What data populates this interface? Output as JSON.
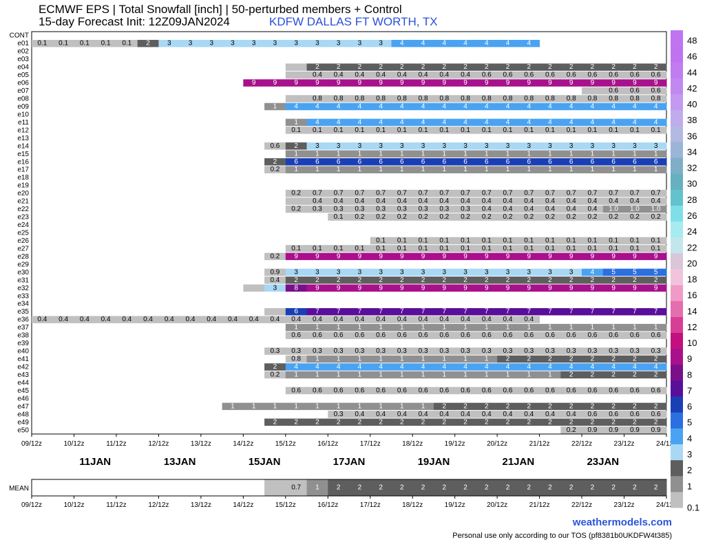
{
  "header": {
    "title": "ECMWF EPS | Total Snowfall [inch] | 50-perturbed members + Control",
    "init": "15-day Forecast Init: 12Z09JAN2024",
    "site": "KDFW DALLAS FT WORTH, TX"
  },
  "footer": {
    "brand": "weathermodels.com",
    "tos": "Personal use only according to our TOS (pf8381b0UKDFW4t385)"
  },
  "chart_data": {
    "type": "heatmap",
    "title": "ECMWF EPS | Total Snowfall [inch] | 50-perturbed members + Control",
    "units": "inch",
    "x": {
      "tick_labels": [
        "09/12z",
        "10/12z",
        "11/12z",
        "12/12z",
        "13/12z",
        "14/12z",
        "15/12z",
        "16/12z",
        "17/12z",
        "18/12z",
        "19/12z",
        "20/12z",
        "21/12z",
        "22/12z",
        "23/12z",
        "24/12z"
      ],
      "day_labels": [
        "11JAN",
        "13JAN",
        "15JAN",
        "17JAN",
        "19JAN",
        "21JAN",
        "23JAN"
      ],
      "columns_from": "15/12z",
      "column_step_hours": 12
    },
    "members": [
      "CONT",
      "e01",
      "e02",
      "e03",
      "e04",
      "e05",
      "e06",
      "e07",
      "e08",
      "e09",
      "e10",
      "e11",
      "e12",
      "e13",
      "e14",
      "e15",
      "e16",
      "e17",
      "e18",
      "e19",
      "e20",
      "e21",
      "e22",
      "e23",
      "e24",
      "e25",
      "e26",
      "e27",
      "e28",
      "e29",
      "e30",
      "e31",
      "e32",
      "e33",
      "e34",
      "e35",
      "e36",
      "e37",
      "e38",
      "e39",
      "e40",
      "e41",
      "e42",
      "e43",
      "e44",
      "e45",
      "e46",
      "e47",
      "e48",
      "e49",
      "e50"
    ],
    "rows": {
      "CONT": {
        "start": 16.5,
        "values": [
          "",
          "0.4"
        ]
      },
      "e01": {
        "start": 0,
        "values": [
          "0.1",
          "0.1",
          "0.1",
          "0.1",
          "0.1",
          "2",
          "3",
          "3",
          "3",
          "3",
          "3",
          "3",
          "3",
          "3",
          "3",
          "3",
          "3",
          "4",
          "4",
          "4",
          "4",
          "4",
          "4",
          "4"
        ]
      },
      "e02": {
        "start": 0,
        "values": []
      },
      "e03": {
        "start": 0,
        "values": []
      },
      "e04": {
        "start": 6,
        "values": [
          "",
          "2",
          "2",
          "2",
          "2",
          "2",
          "2",
          "2",
          "2",
          "2",
          "2",
          "2",
          "2",
          "2",
          "2",
          "2",
          "2",
          "2",
          "2"
        ]
      },
      "e05": {
        "start": 6,
        "values": [
          "",
          "0.4",
          "0.4",
          "0.4",
          "0.4",
          "0.4",
          "0.4",
          "0.4",
          "0.4",
          "0.6",
          "0.6",
          "0.6",
          "0.6",
          "0.6",
          "0.6",
          "0.6",
          "0.6",
          "0.6",
          "0.6"
        ]
      },
      "e06": {
        "start": 5,
        "values": [
          "9",
          "9",
          "9",
          "9",
          "9",
          "9",
          "9",
          "9",
          "9",
          "9",
          "9",
          "9",
          "9",
          "9",
          "9",
          "9",
          "9",
          "9",
          "9",
          "9"
        ]
      },
      "e07": {
        "start": 13,
        "values": [
          "",
          "0.6",
          "0.6",
          "0.6",
          "0.6",
          "0.6",
          "0.6",
          "0.6",
          "0.6",
          "0.6",
          "0.6",
          "0.6",
          "0.6"
        ]
      },
      "e08": {
        "start": 6,
        "values": [
          "",
          "0.8",
          "0.8",
          "0.8",
          "0.8",
          "0.8",
          "0.8",
          "0.8",
          "0.8",
          "0.8",
          "0.8",
          "0.8",
          "0.8",
          "0.8",
          "0.8",
          "0.8",
          "0.8",
          "0.8",
          "0.8"
        ]
      },
      "e09": {
        "start": 5.5,
        "values": [
          "1",
          "4",
          "4",
          "4",
          "4",
          "4",
          "4",
          "4",
          "4",
          "4",
          "4",
          "4",
          "4",
          "4",
          "4",
          "4",
          "4",
          "4",
          "4",
          "4"
        ]
      },
      "e10": {
        "start": 0,
        "values": []
      },
      "e11": {
        "start": 6,
        "values": [
          "1",
          "4",
          "4",
          "4",
          "4",
          "4",
          "4",
          "4",
          "4",
          "4",
          "4",
          "4",
          "4",
          "4",
          "4",
          "4",
          "4",
          "4",
          "4"
        ]
      },
      "e12": {
        "start": 6,
        "values": [
          "0.1",
          "0.1",
          "0.1",
          "0.1",
          "0.1",
          "0.1",
          "0.1",
          "0.1",
          "0.1",
          "0.1",
          "0.1",
          "0.1",
          "0.1",
          "0.1",
          "0.1",
          "0.1",
          "0.1",
          "0.1",
          "0.1"
        ]
      },
      "e13": {
        "start": 0,
        "values": []
      },
      "e14": {
        "start": 5.5,
        "values": [
          "0.6",
          "2",
          "3",
          "3",
          "3",
          "3",
          "3",
          "3",
          "3",
          "3",
          "3",
          "3",
          "3",
          "3",
          "3",
          "3",
          "3",
          "3",
          "3",
          "3"
        ]
      },
      "e15": {
        "start": 6,
        "values": [
          "1",
          "1",
          "1",
          "1",
          "1",
          "1",
          "1",
          "1",
          "1",
          "1",
          "1",
          "1",
          "1",
          "1",
          "1",
          "1",
          "1",
          "1",
          "1"
        ]
      },
      "e16": {
        "start": 5.5,
        "values": [
          "2",
          "6",
          "6",
          "6",
          "6",
          "6",
          "6",
          "6",
          "6",
          "6",
          "6",
          "6",
          "6",
          "6",
          "6",
          "6",
          "6",
          "6",
          "6",
          "6"
        ]
      },
      "e17": {
        "start": 5.5,
        "values": [
          "0.2",
          "1",
          "1",
          "1",
          "1",
          "1",
          "1",
          "1",
          "1",
          "1",
          "1",
          "1",
          "1",
          "1",
          "1",
          "1",
          "1",
          "1",
          "1",
          "1"
        ]
      },
      "e18": {
        "start": 0,
        "values": []
      },
      "e19": {
        "start": 0,
        "values": []
      },
      "e20": {
        "start": 6,
        "values": [
          "0.2",
          "0.7",
          "0.7",
          "0.7",
          "0.7",
          "0.7",
          "0.7",
          "0.7",
          "0.7",
          "0.7",
          "0.7",
          "0.7",
          "0.7",
          "0.7",
          "0.7",
          "0.7",
          "0.7",
          "0.7",
          "0.7"
        ]
      },
      "e21": {
        "start": 6,
        "values": [
          "",
          "0.4",
          "0.4",
          "0.4",
          "0.4",
          "0.4",
          "0.4",
          "0.4",
          "0.4",
          "0.4",
          "0.4",
          "0.4",
          "0.4",
          "0.4",
          "0.4",
          "0.4",
          "0.4",
          "0.4",
          "0.4"
        ]
      },
      "e22": {
        "start": 6,
        "values": [
          "0.2",
          "0.3",
          "0.3",
          "0.3",
          "0.3",
          "0.3",
          "0.3",
          "0.3",
          "0.3",
          "0.4",
          "0.4",
          "0.4",
          "0.4",
          "0.4",
          "0.4",
          "1.0",
          "1.0",
          "1.0"
        ]
      },
      "e23": {
        "start": 7,
        "values": [
          "0.1",
          "0.2",
          "0.2",
          "0.2",
          "0.2",
          "0.2",
          "0.2",
          "0.2",
          "0.2",
          "0.2",
          "0.2",
          "0.2",
          "0.2",
          "0.2",
          "0.2",
          "0.2",
          "0.2",
          "0.2"
        ]
      },
      "e24": {
        "start": 0,
        "values": []
      },
      "e25": {
        "start": 0,
        "values": []
      },
      "e26": {
        "start": 8,
        "values": [
          "0.1",
          "0.1",
          "0.1",
          "0.1",
          "0.1",
          "0.1",
          "0.1",
          "0.1",
          "0.1",
          "0.1",
          "0.1",
          "0.1",
          "0.1",
          "0.1",
          "0.1",
          "0.1",
          "0.1"
        ]
      },
      "e27": {
        "start": 6,
        "values": [
          "0.1",
          "0.1",
          "0.1",
          "0.1",
          "0.1",
          "0.1",
          "0.1",
          "0.1",
          "0.1",
          "0.1",
          "0.1",
          "0.1",
          "0.1",
          "0.1",
          "0.1",
          "0.1",
          "0.1",
          "0.1",
          "0.1"
        ]
      },
      "e28": {
        "start": 5.5,
        "values": [
          "0.2",
          "9",
          "9",
          "9",
          "9",
          "9",
          "9",
          "9",
          "9",
          "9",
          "9",
          "9",
          "9",
          "9",
          "9",
          "9",
          "9",
          "9",
          "9",
          "9"
        ]
      },
      "e29": {
        "start": 0,
        "values": []
      },
      "e30": {
        "start": 5.5,
        "values": [
          "0.9",
          "3",
          "3",
          "3",
          "3",
          "3",
          "3",
          "3",
          "3",
          "3",
          "3",
          "3",
          "3",
          "3",
          "3",
          "4",
          "5",
          "5",
          "5",
          "5"
        ]
      },
      "e31": {
        "start": 5.5,
        "values": [
          "0.4",
          "2",
          "2",
          "2",
          "2",
          "2",
          "2",
          "2",
          "2",
          "2",
          "2",
          "2",
          "2",
          "2",
          "2",
          "2",
          "2",
          "2",
          "2",
          "2"
        ]
      },
      "e32": {
        "start": 5,
        "values": [
          "",
          "3",
          "8",
          "9",
          "9",
          "9",
          "9",
          "9",
          "9",
          "9",
          "9",
          "9",
          "9",
          "9",
          "9",
          "9",
          "9",
          "9",
          "9",
          "9",
          "9"
        ]
      },
      "e33": {
        "start": 0,
        "values": []
      },
      "e34": {
        "start": 0,
        "values": []
      },
      "e35": {
        "start": 5.5,
        "values": [
          "",
          "6",
          "7",
          "7",
          "7",
          "7",
          "7",
          "7",
          "7",
          "7",
          "7",
          "7",
          "7",
          "7",
          "7",
          "7",
          "7",
          "7",
          "7",
          "7"
        ]
      },
      "e36": {
        "start": 0,
        "values": [
          "0.4",
          "0.4",
          "0.4",
          "0.4",
          "0.4",
          "0.4",
          "0.4",
          "0.4",
          "0.4",
          "0.4",
          "0.4",
          "0.4",
          "0.4",
          "0.4",
          "0.4",
          "0.4",
          "0.4",
          "0.4",
          "0.4",
          "0.4",
          "0.4",
          "0.4",
          "0.4",
          "0.4"
        ]
      },
      "e37": {
        "start": 6,
        "values": [
          "1",
          "1",
          "1",
          "1",
          "1",
          "1",
          "1",
          "1",
          "1",
          "1",
          "1",
          "1",
          "1",
          "1",
          "1",
          "1",
          "1",
          "1",
          "1"
        ]
      },
      "e38": {
        "start": 6,
        "values": [
          "0.6",
          "0.6",
          "0.6",
          "0.6",
          "0.6",
          "0.6",
          "0.6",
          "0.6",
          "0.6",
          "0.6",
          "0.6",
          "0.6",
          "0.6",
          "0.6",
          "0.6",
          "0.6",
          "0.6",
          "0.6",
          "0.6"
        ]
      },
      "e39": {
        "start": 0,
        "values": []
      },
      "e40": {
        "start": 5.5,
        "values": [
          "0.3",
          "0.3",
          "0.3",
          "0.3",
          "0.3",
          "0.3",
          "0.3",
          "0.3",
          "0.3",
          "0.3",
          "0.3",
          "0.3",
          "0.3",
          "0.3",
          "0.3",
          "0.3",
          "0.3",
          "0.3",
          "0.3",
          "0.3"
        ]
      },
      "e41": {
        "start": 6,
        "values": [
          "0.8",
          "1",
          "1",
          "1",
          "1",
          "1",
          "1",
          "1",
          "1",
          "1",
          "2",
          "2",
          "2",
          "2",
          "2",
          "2",
          "2",
          "2",
          "2"
        ]
      },
      "e42": {
        "start": 5.5,
        "values": [
          "2",
          "4",
          "4",
          "4",
          "4",
          "4",
          "4",
          "4",
          "4",
          "4",
          "4",
          "4",
          "4",
          "4",
          "4",
          "4",
          "4",
          "4",
          "4",
          "4"
        ]
      },
      "e43": {
        "start": 5.5,
        "values": [
          "0.2",
          "1",
          "1",
          "1",
          "1",
          "1",
          "1",
          "1",
          "1",
          "1",
          "1",
          "1",
          "1",
          "1",
          "2",
          "2",
          "2",
          "2",
          "2",
          "2"
        ]
      },
      "e44": {
        "start": 0,
        "values": []
      },
      "e45": {
        "start": 6,
        "values": [
          "0.6",
          "0.6",
          "0.6",
          "0.6",
          "0.6",
          "0.6",
          "0.6",
          "0.6",
          "0.6",
          "0.6",
          "0.6",
          "0.6",
          "0.6",
          "0.6",
          "0.6",
          "0.6",
          "0.6",
          "0.6",
          "0.6"
        ]
      },
      "e46": {
        "start": 0,
        "values": []
      },
      "e47": {
        "start": 4.5,
        "values": [
          "1",
          "1",
          "1",
          "1",
          "1",
          "1",
          "1",
          "1",
          "1",
          "1",
          "2",
          "2",
          "2",
          "2",
          "2",
          "2",
          "2",
          "2",
          "2",
          "2",
          "2",
          "2"
        ]
      },
      "e48": {
        "start": 7,
        "values": [
          "0.3",
          "0.4",
          "0.4",
          "0.4",
          "0.4",
          "0.4",
          "0.4",
          "0.4",
          "0.4",
          "0.4",
          "0.4",
          "0.4",
          "0.6",
          "0.6",
          "0.6",
          "0.6",
          "0.6",
          "0.6"
        ]
      },
      "e49": {
        "start": 5.5,
        "values": [
          "2",
          "2",
          "2",
          "2",
          "2",
          "2",
          "2",
          "2",
          "2",
          "2",
          "2",
          "2",
          "2",
          "2",
          "2",
          "2",
          "2",
          "2",
          "2",
          "2"
        ]
      },
      "e50": {
        "start": 12.5,
        "values": [
          "0.2",
          "0.9",
          "0.9",
          "0.9",
          "0.9",
          "0.9",
          "0.9",
          "0.9",
          "0.9",
          "0.9",
          "0.9",
          "0.9",
          "0.9"
        ]
      }
    },
    "mean": {
      "label": "MEAN",
      "start": 5.5,
      "values": [
        "",
        "0.7",
        "1",
        "2",
        "2",
        "2",
        "2",
        "2",
        "2",
        "2",
        "2",
        "2",
        "2",
        "2",
        "2",
        "2",
        "2",
        "2",
        "2",
        "2",
        "2"
      ]
    },
    "colorbar": {
      "levels": [
        "0.1",
        "1",
        "2",
        "3",
        "4",
        "5",
        "6",
        "7",
        "8",
        "9",
        "10",
        "12",
        "14",
        "16",
        "18",
        "20",
        "22",
        "24",
        "26",
        "28",
        "30",
        "32",
        "34",
        "36",
        "38",
        "40",
        "42",
        "44",
        "46",
        "48"
      ],
      "labels": [
        "0.1",
        "1",
        "2",
        "3",
        "4",
        "5",
        "6",
        "7",
        "8",
        "9",
        "10",
        "12",
        "14",
        "16",
        "18",
        "20",
        "22",
        "24",
        "26",
        "28",
        "30",
        "32",
        "34",
        "36",
        "38",
        "40",
        "42",
        "44",
        "46",
        "48"
      ],
      "colors": [
        "#c0c0c0",
        "#909090",
        "#5e5e5e",
        "#a9d8f5",
        "#4aa3f2",
        "#2b6fe0",
        "#1a3fb5",
        "#5a0f9a",
        "#7a0f8a",
        "#a8108c",
        "#c21080",
        "#d63f95",
        "#e56eae",
        "#f09bc7",
        "#f2c4dc",
        "#d9c6d9",
        "#c3e6ec",
        "#a6ebf0",
        "#7fdfe8",
        "#63c3cd",
        "#66b0c1",
        "#7faec8",
        "#9ab5d6",
        "#b2b9e3",
        "#c0acec",
        "#c49af0",
        "#c189f0",
        "#c07cf0",
        "#c073f0",
        "#c074f2"
      ]
    }
  }
}
